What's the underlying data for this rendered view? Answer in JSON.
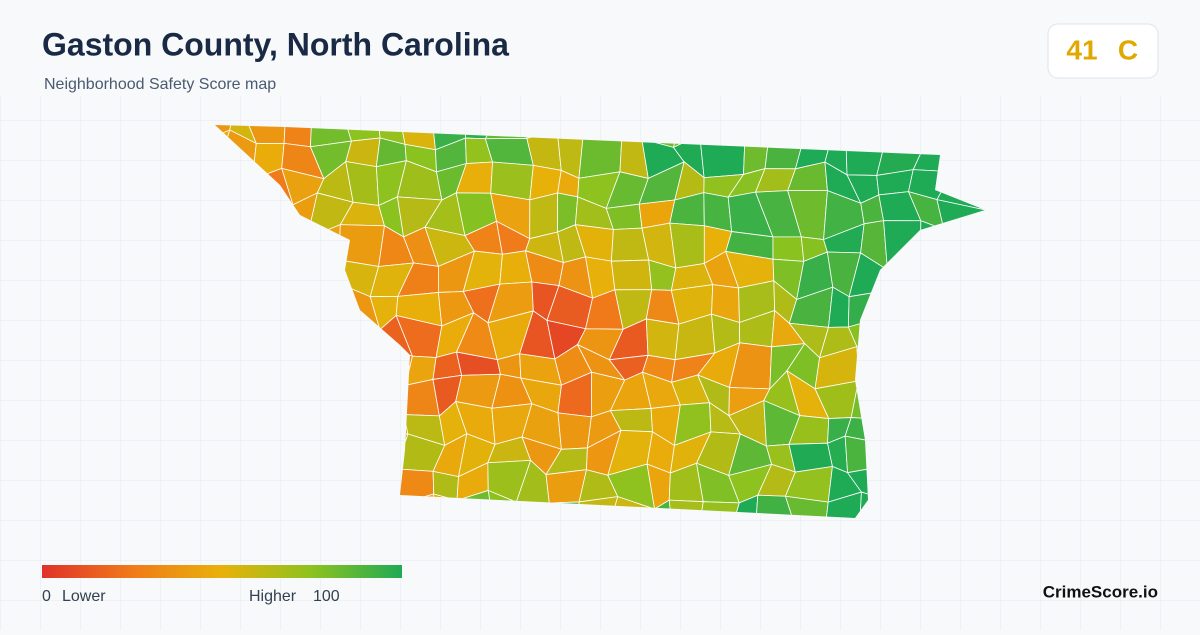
{
  "header": {
    "title": "Gaston County, North Carolina",
    "subtitle": "Neighborhood Safety Score map"
  },
  "score": {
    "value": 41,
    "grade": "C"
  },
  "legend": {
    "min": 0,
    "low_label": "Lower",
    "high_label": "Higher",
    "max": 100
  },
  "brand": "CrimeScore.io"
}
